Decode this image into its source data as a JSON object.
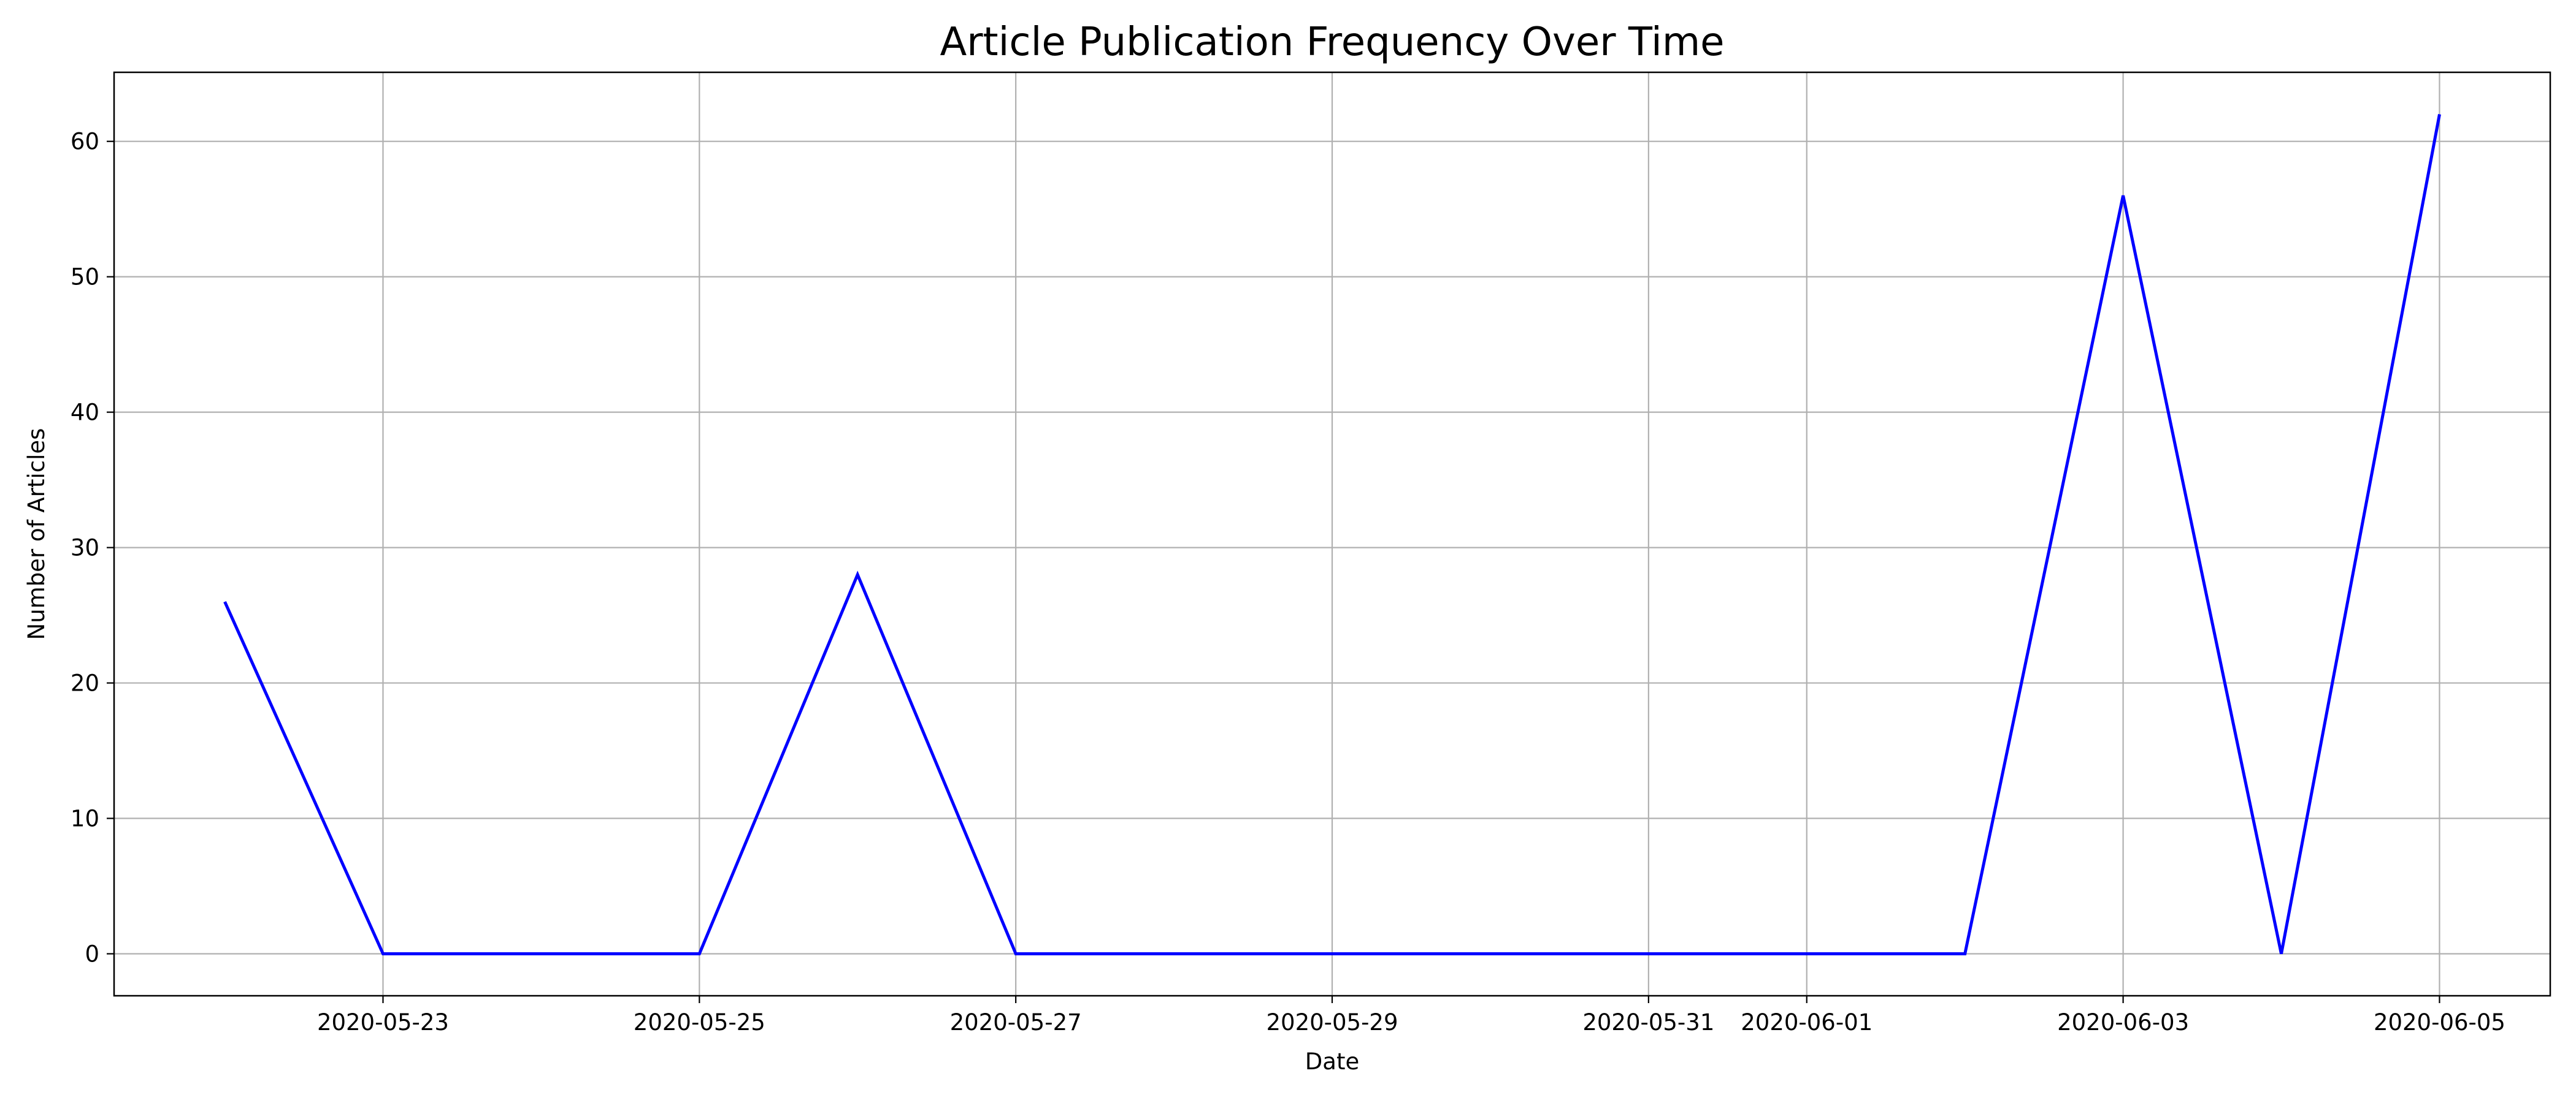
{
  "chart_data": {
    "type": "line",
    "title": "Article Publication Frequency Over Time",
    "xlabel": "Date",
    "ylabel": "Number of Articles",
    "x": [
      "2020-05-22",
      "2020-05-23",
      "2020-05-24",
      "2020-05-25",
      "2020-05-26",
      "2020-05-27",
      "2020-05-28",
      "2020-05-29",
      "2020-05-30",
      "2020-05-31",
      "2020-06-01",
      "2020-06-02",
      "2020-06-03",
      "2020-06-04",
      "2020-06-05"
    ],
    "series": [
      {
        "values": [
          26,
          0,
          0,
          0,
          28,
          0,
          0,
          0,
          0,
          0,
          0,
          0,
          56,
          0,
          62
        ],
        "color": "#0000ff"
      }
    ],
    "xlim": [
      "2020-05-21.3",
      "2020-06-05.7"
    ],
    "ylim": [
      -3.1,
      65.1
    ],
    "x_ticks": [
      "2020-05-23",
      "2020-05-25",
      "2020-05-27",
      "2020-05-29",
      "2020-05-31",
      "2020-06-01",
      "2020-06-03",
      "2020-06-05"
    ],
    "y_ticks": [
      0,
      10,
      20,
      30,
      40,
      50,
      60
    ],
    "grid": true,
    "legend": "none"
  }
}
